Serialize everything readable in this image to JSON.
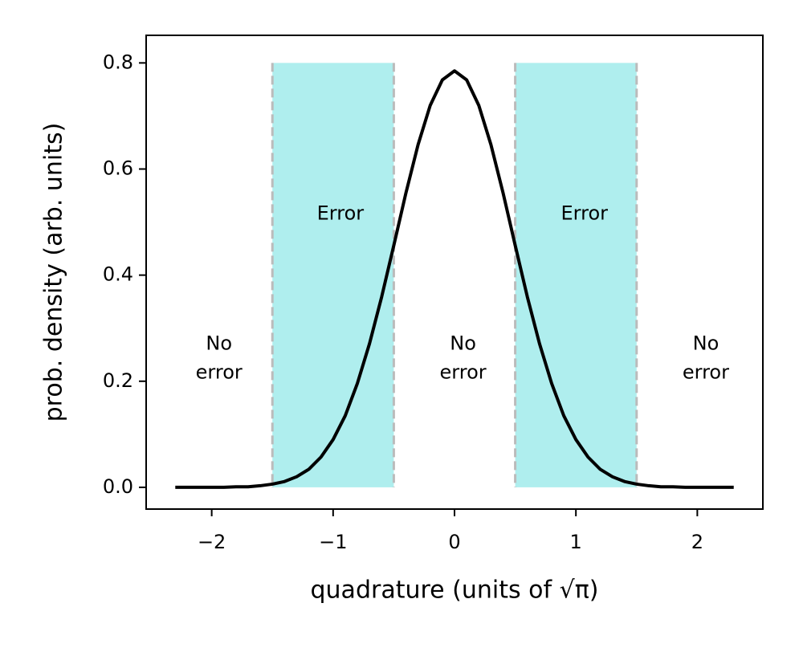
{
  "chart_data": {
    "type": "line",
    "xlabel": "quadrature (units of √π)",
    "ylabel": "prob. density (arb. units)",
    "x": [
      -2.3,
      -2.2,
      -2.1,
      -2.0,
      -1.9,
      -1.8,
      -1.7,
      -1.6,
      -1.5,
      -1.4,
      -1.3,
      -1.2,
      -1.1,
      -1.0,
      -0.9,
      -0.8,
      -0.7,
      -0.6,
      -0.5,
      -0.4,
      -0.3,
      -0.2,
      -0.1,
      0.0,
      0.1,
      0.2,
      0.3,
      0.4,
      0.5,
      0.6,
      0.7,
      0.8,
      0.9,
      1.0,
      1.1,
      1.2,
      1.3,
      1.4,
      1.5,
      1.6,
      1.7,
      1.8,
      1.9,
      2.0,
      2.1,
      2.2,
      2.3
    ],
    "series": [
      {
        "color": "#000000",
        "values": [
          0,
          0,
          0,
          0,
          0,
          0.001,
          0.001,
          0.003,
          0.006,
          0.011,
          0.02,
          0.034,
          0.057,
          0.09,
          0.135,
          0.196,
          0.271,
          0.359,
          0.456,
          0.555,
          0.646,
          0.72,
          0.768,
          0.785,
          0.768,
          0.72,
          0.646,
          0.555,
          0.456,
          0.359,
          0.271,
          0.196,
          0.135,
          0.09,
          0.057,
          0.034,
          0.02,
          0.011,
          0.006,
          0.003,
          0.001,
          0.001,
          0,
          0,
          0,
          0,
          0
        ]
      }
    ],
    "spans": [
      {
        "xmin": -1.5,
        "xmax": -0.5,
        "ymin": 0,
        "ymax": 0.8
      },
      {
        "xmin": 0.5,
        "xmax": 1.5,
        "ymin": 0,
        "ymax": 0.8
      }
    ],
    "span_color": "#afeeee",
    "span_edge_color": "#bbbbbb",
    "annotations": [
      {
        "text": "Error",
        "x": -0.94,
        "y": 0.515
      },
      {
        "text": "Error",
        "x": 1.07,
        "y": 0.515
      },
      {
        "text": "No\nerror",
        "x": -1.94,
        "y": 0.243
      },
      {
        "text": "No\nerror",
        "x": 0.07,
        "y": 0.243
      },
      {
        "text": "No\nerror",
        "x": 2.07,
        "y": 0.243
      }
    ],
    "xlim": [
      -2.54,
      2.54
    ],
    "ylim": [
      -0.041,
      0.852
    ],
    "xticks": [
      {
        "value": -2,
        "label": "−2"
      },
      {
        "value": -1,
        "label": "−1"
      },
      0,
      1,
      2
    ],
    "yticks": [
      {
        "value": 0,
        "label": "0.0"
      },
      0.2,
      0.4,
      0.6,
      0.8
    ]
  }
}
